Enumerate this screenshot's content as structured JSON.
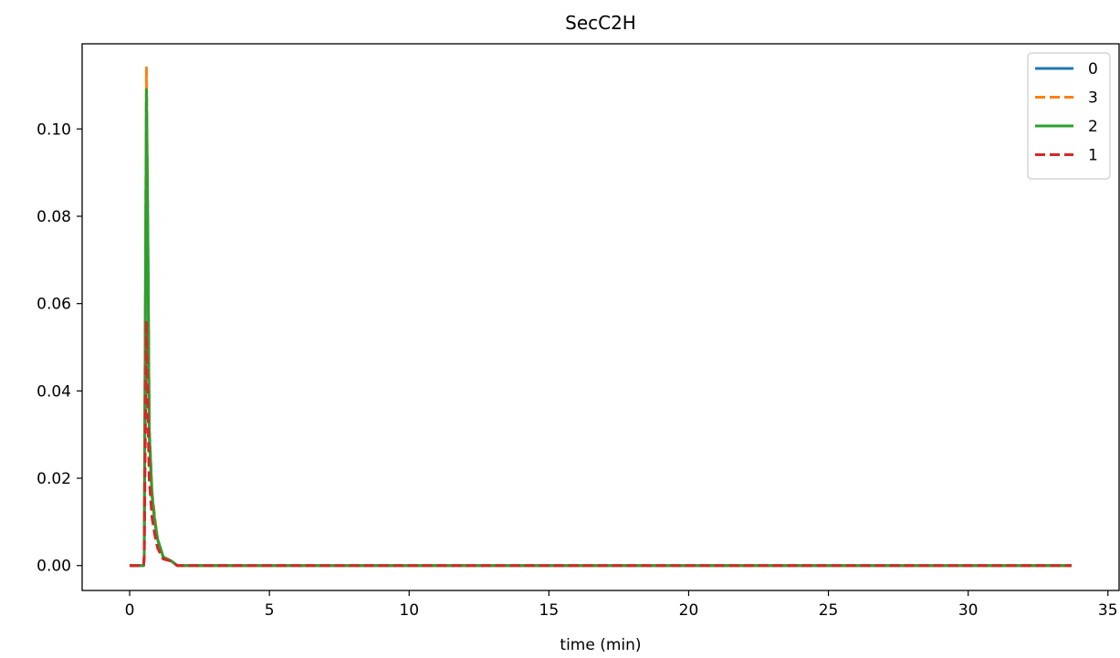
{
  "chart_data": {
    "type": "line",
    "title": "SecC2H",
    "xlabel": "time (min)",
    "ylabel": "",
    "xlim": [
      -1.7,
      35.4
    ],
    "ylim": [
      -0.0057,
      0.1195
    ],
    "xticks": [
      0,
      5,
      10,
      15,
      20,
      25,
      30,
      35
    ],
    "yticks": [
      0.0,
      0.02,
      0.04,
      0.06,
      0.08,
      0.1
    ],
    "ytick_labels": [
      "0.00",
      "0.02",
      "0.04",
      "0.06",
      "0.08",
      "0.10"
    ],
    "grid": false,
    "legend_position": "top-right",
    "series": [
      {
        "name": "0",
        "color": "#1f77b4",
        "dash": "solid",
        "x": [
          0,
          0.5,
          0.52,
          0.6,
          0.65,
          0.7,
          0.8,
          0.9,
          1.0,
          1.2,
          1.5,
          1.7,
          5,
          10,
          15,
          20,
          25,
          30,
          33.7
        ],
        "y": [
          0,
          0,
          0.002,
          0.108,
          0.075,
          0.03,
          0.016,
          0.01,
          0.006,
          0.002,
          0.001,
          0,
          0,
          0,
          0,
          0,
          0,
          0,
          0
        ]
      },
      {
        "name": "3",
        "color": "#ff7f0e",
        "dash": "dashed",
        "x": [
          0,
          0.5,
          0.52,
          0.6,
          0.65,
          0.7,
          0.8,
          0.9,
          1.0,
          1.2,
          1.5,
          1.7,
          5,
          10,
          15,
          20,
          25,
          30,
          33.7
        ],
        "y": [
          0,
          0,
          0.002,
          0.114,
          0.078,
          0.032,
          0.017,
          0.011,
          0.006,
          0.002,
          0.001,
          0,
          0,
          0,
          0,
          0,
          0,
          0,
          0
        ]
      },
      {
        "name": "2",
        "color": "#2ca02c",
        "dash": "solid",
        "x": [
          0,
          0.5,
          0.52,
          0.6,
          0.65,
          0.7,
          0.8,
          0.9,
          1.0,
          1.2,
          1.5,
          1.7,
          5,
          10,
          15,
          20,
          25,
          30,
          33.7
        ],
        "y": [
          0,
          0,
          0.002,
          0.109,
          0.076,
          0.031,
          0.016,
          0.01,
          0.006,
          0.002,
          0.001,
          0,
          0,
          0,
          0,
          0,
          0,
          0,
          0
        ]
      },
      {
        "name": "1",
        "color": "#d62728",
        "dash": "dashed",
        "x": [
          0,
          0.5,
          0.52,
          0.6,
          0.65,
          0.7,
          0.8,
          0.9,
          1.0,
          1.2,
          1.5,
          1.7,
          5,
          10,
          15,
          20,
          25,
          30,
          33.7
        ],
        "y": [
          0,
          0,
          0.002,
          0.056,
          0.035,
          0.02,
          0.011,
          0.007,
          0.004,
          0.0015,
          0.001,
          0,
          0,
          0,
          0,
          0,
          0,
          0,
          0
        ]
      }
    ]
  }
}
